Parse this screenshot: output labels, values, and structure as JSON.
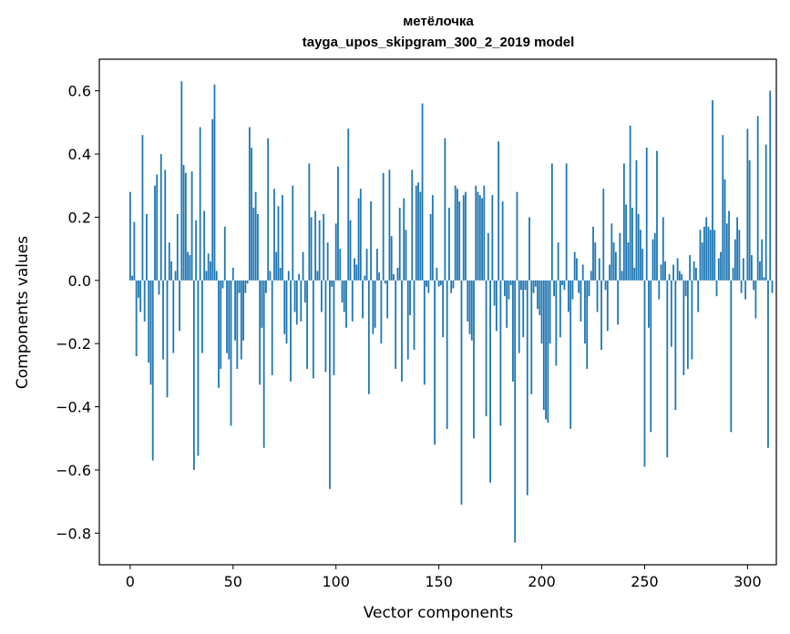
{
  "chart_data": {
    "type": "bar",
    "title": "метёлочка",
    "subtitle": "tayga_upos_skipgram_300_2_2019 model",
    "xlabel": "Vector components",
    "ylabel": "Components values",
    "xlim": [
      -15,
      314
    ],
    "ylim": [
      -0.9,
      0.7
    ],
    "xticks": [
      0,
      50,
      100,
      150,
      200,
      250,
      300
    ],
    "yticks": [
      0.6,
      0.4,
      0.2,
      0.0,
      -0.2,
      -0.4,
      -0.6,
      -0.8
    ],
    "ytick_labels": [
      "0.6",
      "0.4",
      "0.2",
      "0.0",
      "−0.2",
      "−0.4",
      "−0.6",
      "−0.8"
    ],
    "bar_color": "#1f77b4",
    "grid": false,
    "values": [
      0.28,
      0.015,
      0.185,
      -0.24,
      -0.055,
      -0.1,
      0.46,
      -0.13,
      0.21,
      -0.26,
      -0.33,
      -0.57,
      0.3,
      0.335,
      -0.045,
      0.4,
      -0.25,
      0.35,
      -0.37,
      0.12,
      0.06,
      -0.23,
      0.03,
      0.21,
      -0.16,
      0.63,
      0.365,
      0.34,
      0.09,
      0.08,
      0.345,
      -0.6,
      0.19,
      -0.555,
      0.485,
      -0.23,
      0.22,
      0.03,
      0.085,
      0.06,
      0.51,
      0.62,
      0.03,
      -0.34,
      -0.28,
      -0.025,
      0.17,
      -0.23,
      -0.25,
      -0.46,
      0.04,
      -0.19,
      -0.28,
      -0.04,
      -0.25,
      -0.19,
      -0.04,
      -0.01,
      0.485,
      0.42,
      0.23,
      0.28,
      0.21,
      -0.33,
      -0.15,
      -0.53,
      -0.04,
      0.45,
      0.03,
      -0.3,
      0.29,
      0.09,
      0.235,
      0.04,
      0.27,
      -0.17,
      -0.2,
      0.03,
      -0.32,
      0.3,
      -0.1,
      -0.14,
      0.02,
      -0.13,
      0.09,
      -0.07,
      -0.28,
      0.37,
      0.2,
      -0.31,
      0.22,
      0.03,
      0.19,
      -0.1,
      0.21,
      -0.29,
      0.12,
      -0.66,
      -0.02,
      -0.3,
      0.18,
      0.36,
      0.1,
      -0.07,
      -0.1,
      -0.15,
      0.48,
      0.19,
      -0.13,
      0.07,
      0.05,
      0.26,
      0.29,
      -0.12,
      0.015,
      0.1,
      -0.36,
      0.25,
      -0.17,
      -0.15,
      0.1,
      0.025,
      -0.2,
      0.34,
      -0.01,
      -0.12,
      0.35,
      0.14,
      0.02,
      -0.28,
      0.04,
      0.23,
      -0.32,
      0.26,
      0.16,
      -0.25,
      -0.11,
      0.35,
      -0.22,
      0.3,
      0.31,
      0.28,
      0.56,
      -0.33,
      -0.02,
      -0.04,
      0.21,
      0.27,
      -0.52,
      0.04,
      -0.02,
      -0.015,
      -0.18,
      0.45,
      -0.47,
      0.23,
      -0.04,
      -0.025,
      0.3,
      0.29,
      0.25,
      -0.71,
      0.27,
      0.28,
      -0.13,
      -0.17,
      -0.19,
      -0.5,
      0.3,
      0.28,
      0.27,
      0.26,
      0.3,
      -0.43,
      0.15,
      -0.64,
      0.27,
      -0.08,
      -0.16,
      0.44,
      -0.46,
      0.25,
      -0.05,
      -0.15,
      -0.06,
      -0.015,
      -0.32,
      -0.83,
      0.28,
      -0.23,
      -0.03,
      -0.18,
      -0.03,
      -0.68,
      0.2,
      -0.36,
      -0.04,
      -0.02,
      -0.09,
      -0.11,
      -0.2,
      -0.41,
      -0.44,
      -0.45,
      -0.2,
      0.37,
      -0.05,
      -0.27,
      0.12,
      -0.18,
      -0.015,
      -0.03,
      0.37,
      -0.1,
      -0.47,
      -0.06,
      0.09,
      0.07,
      -0.04,
      -0.13,
      0.05,
      -0.2,
      -0.28,
      -0.05,
      0.03,
      0.17,
      0.12,
      -0.1,
      0.07,
      -0.22,
      0.29,
      -0.03,
      -0.16,
      0.05,
      0.18,
      0.12,
      0.09,
      -0.14,
      0.15,
      0.03,
      0.37,
      0.24,
      0.12,
      0.49,
      0.23,
      0.04,
      0.38,
      0.21,
      0.16,
      0.1,
      -0.59,
      0.42,
      -0.15,
      -0.48,
      0.13,
      0.15,
      0.41,
      -0.06,
      0.05,
      0.2,
      0.06,
      -0.56,
      0.02,
      -0.21,
      0.05,
      -0.41,
      0.07,
      0.03,
      0.02,
      -0.3,
      -0.05,
      -0.28,
      0.08,
      -0.25,
      0.06,
      0.04,
      -0.1,
      0.16,
      0.12,
      0.17,
      0.2,
      0.17,
      0.16,
      0.57,
      0.16,
      -0.05,
      0.07,
      0.09,
      0.46,
      0.32,
      0.18,
      0.22,
      -0.48,
      0.04,
      0.13,
      0.2,
      0.16,
      -0.04,
      0.07,
      -0.06,
      0.48,
      0.38,
      0.08,
      -0.03,
      -0.12,
      0.52,
      0.06,
      0.13,
      0.01,
      0.43,
      -0.53,
      0.6,
      -0.04
    ]
  }
}
